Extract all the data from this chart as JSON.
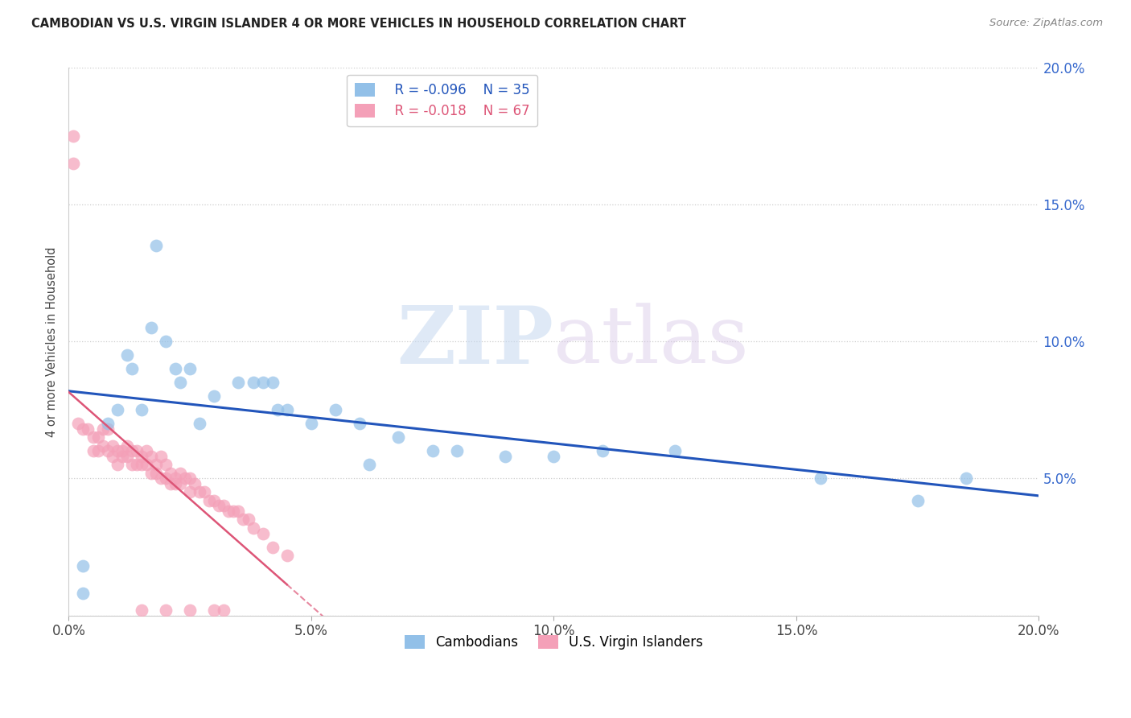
{
  "title": "CAMBODIAN VS U.S. VIRGIN ISLANDER 4 OR MORE VEHICLES IN HOUSEHOLD CORRELATION CHART",
  "source": "Source: ZipAtlas.com",
  "ylabel": "4 or more Vehicles in Household",
  "xlim": [
    0.0,
    0.2
  ],
  "ylim": [
    0.0,
    0.2
  ],
  "xtick_labels": [
    "0.0%",
    "",
    "5.0%",
    "",
    "10.0%",
    "",
    "15.0%",
    "",
    "20.0%"
  ],
  "xtick_vals": [
    0.0,
    0.025,
    0.05,
    0.075,
    0.1,
    0.125,
    0.15,
    0.175,
    0.2
  ],
  "ytick_vals": [
    0.0,
    0.05,
    0.1,
    0.15,
    0.2
  ],
  "ytick_labels_right": [
    "",
    "5.0%",
    "10.0%",
    "15.0%",
    "20.0%"
  ],
  "legend_r_cambodian": "R = -0.096",
  "legend_n_cambodian": "N = 35",
  "legend_r_usvi": "R = -0.018",
  "legend_n_usvi": "N = 67",
  "blue_color": "#92c0e8",
  "pink_color": "#f4a0b8",
  "blue_line_color": "#2255bb",
  "pink_line_color": "#dd5577",
  "watermark_zip": "ZIP",
  "watermark_atlas": "atlas",
  "cambodian_x": [
    0.003,
    0.003,
    0.008,
    0.01,
    0.012,
    0.013,
    0.015,
    0.017,
    0.018,
    0.02,
    0.022,
    0.023,
    0.025,
    0.027,
    0.03,
    0.035,
    0.038,
    0.04,
    0.042,
    0.043,
    0.045,
    0.05,
    0.055,
    0.06,
    0.062,
    0.068,
    0.075,
    0.08,
    0.09,
    0.1,
    0.11,
    0.125,
    0.155,
    0.175,
    0.185
  ],
  "cambodian_y": [
    0.008,
    0.018,
    0.07,
    0.075,
    0.095,
    0.09,
    0.075,
    0.105,
    0.135,
    0.1,
    0.09,
    0.085,
    0.09,
    0.07,
    0.08,
    0.085,
    0.085,
    0.085,
    0.085,
    0.075,
    0.075,
    0.07,
    0.075,
    0.07,
    0.055,
    0.065,
    0.06,
    0.06,
    0.058,
    0.058,
    0.06,
    0.06,
    0.05,
    0.042,
    0.05
  ],
  "usvi_x": [
    0.001,
    0.001,
    0.002,
    0.003,
    0.004,
    0.005,
    0.005,
    0.006,
    0.006,
    0.007,
    0.007,
    0.008,
    0.008,
    0.009,
    0.009,
    0.01,
    0.01,
    0.011,
    0.011,
    0.012,
    0.012,
    0.013,
    0.013,
    0.014,
    0.014,
    0.015,
    0.015,
    0.016,
    0.016,
    0.017,
    0.017,
    0.018,
    0.018,
    0.019,
    0.019,
    0.02,
    0.02,
    0.021,
    0.021,
    0.022,
    0.022,
    0.023,
    0.023,
    0.024,
    0.025,
    0.025,
    0.026,
    0.027,
    0.028,
    0.029,
    0.03,
    0.031,
    0.032,
    0.033,
    0.034,
    0.035,
    0.036,
    0.037,
    0.038,
    0.04,
    0.042,
    0.045,
    0.015,
    0.02,
    0.025,
    0.03,
    0.032
  ],
  "usvi_y": [
    0.175,
    0.165,
    0.07,
    0.068,
    0.068,
    0.065,
    0.06,
    0.065,
    0.06,
    0.068,
    0.062,
    0.068,
    0.06,
    0.062,
    0.058,
    0.06,
    0.055,
    0.06,
    0.058,
    0.062,
    0.058,
    0.06,
    0.055,
    0.06,
    0.055,
    0.058,
    0.055,
    0.06,
    0.055,
    0.058,
    0.052,
    0.055,
    0.052,
    0.058,
    0.05,
    0.055,
    0.05,
    0.052,
    0.048,
    0.05,
    0.048,
    0.052,
    0.048,
    0.05,
    0.05,
    0.045,
    0.048,
    0.045,
    0.045,
    0.042,
    0.042,
    0.04,
    0.04,
    0.038,
    0.038,
    0.038,
    0.035,
    0.035,
    0.032,
    0.03,
    0.025,
    0.022,
    0.002,
    0.002,
    0.002,
    0.002,
    0.002
  ]
}
